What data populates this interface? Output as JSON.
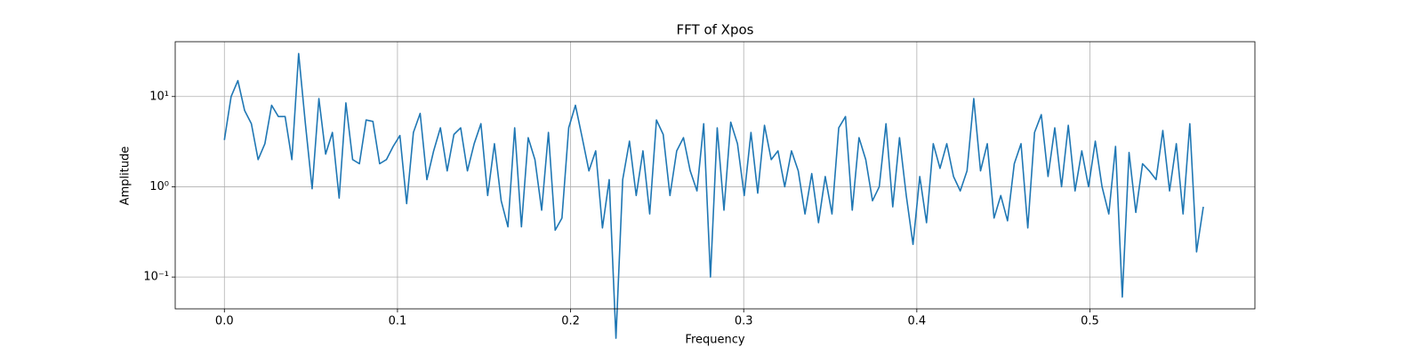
{
  "chart_data": {
    "type": "line",
    "title": "FFT of Xpos",
    "xlabel": "Frequency",
    "ylabel": "Amplitude",
    "x": [
      0,
      0.0039,
      0.0078,
      0.0117,
      0.0156,
      0.0195,
      0.0234,
      0.0273,
      0.0312,
      0.0351,
      0.039,
      0.0429,
      0.0468,
      0.0507,
      0.0546,
      0.0585,
      0.0624,
      0.0663,
      0.0702,
      0.0741,
      0.078,
      0.0819,
      0.0858,
      0.0897,
      0.0936,
      0.0975,
      0.1014,
      0.1053,
      0.1092,
      0.1131,
      0.117,
      0.1209,
      0.1248,
      0.1287,
      0.1326,
      0.1365,
      0.1404,
      0.1443,
      0.1482,
      0.1521,
      0.156,
      0.1599,
      0.1638,
      0.1677,
      0.1716,
      0.1755,
      0.1794,
      0.1833,
      0.1872,
      0.1911,
      0.195,
      0.1989,
      0.2028,
      0.2067,
      0.2106,
      0.2145,
      0.2184,
      0.2223,
      0.2262,
      0.2301,
      0.234,
      0.2379,
      0.2418,
      0.2457,
      0.2496,
      0.2535,
      0.2574,
      0.2613,
      0.2652,
      0.2691,
      0.273,
      0.2769,
      0.2808,
      0.2847,
      0.2886,
      0.2925,
      0.2964,
      0.3003,
      0.3042,
      0.3081,
      0.312,
      0.3159,
      0.3198,
      0.3237,
      0.3276,
      0.3315,
      0.3354,
      0.3393,
      0.3432,
      0.3471,
      0.351,
      0.3549,
      0.3588,
      0.3627,
      0.3666,
      0.3705,
      0.3744,
      0.3783,
      0.3822,
      0.3861,
      0.39,
      0.3939,
      0.3978,
      0.4017,
      0.4056,
      0.4095,
      0.4134,
      0.4173,
      0.4212,
      0.4251,
      0.429,
      0.4329,
      0.4368,
      0.4407,
      0.4446,
      0.4485,
      0.4524,
      0.4563,
      0.4602,
      0.4641,
      0.468,
      0.4719,
      0.4758,
      0.4797,
      0.4836,
      0.4875,
      0.4914,
      0.4953,
      0.4992,
      0.5031,
      0.507,
      0.5109,
      0.5148,
      0.5187,
      0.5226,
      0.5265,
      0.5304,
      0.5343,
      0.5382,
      0.5421,
      0.546,
      0.5499,
      0.5538,
      0.5577,
      0.5616,
      0.5655
    ],
    "values": [
      3.3,
      10,
      15,
      7,
      5,
      2,
      3,
      8,
      6,
      6,
      2,
      30,
      5,
      0.95,
      9.5,
      2.3,
      4,
      0.75,
      8.5,
      2,
      1.8,
      5.5,
      5.3,
      1.8,
      2,
      2.8,
      3.7,
      0.65,
      4,
      6.5,
      1.2,
      2.5,
      4.5,
      1.5,
      3.8,
      4.5,
      1.5,
      3,
      5,
      0.8,
      3,
      0.7,
      0.36,
      4.5,
      0.36,
      3.5,
      2,
      0.55,
      4,
      0.33,
      0.45,
      4.5,
      8,
      3.5,
      1.5,
      2.5,
      0.35,
      1.2,
      0.021,
      1.2,
      3.2,
      0.8,
      2.5,
      0.5,
      5.5,
      3.8,
      0.8,
      2.5,
      3.5,
      1.5,
      0.9,
      5,
      0.1,
      4.5,
      0.55,
      5.2,
      3,
      0.8,
      4,
      0.85,
      4.8,
      2,
      2.5,
      1,
      2.5,
      1.5,
      0.5,
      1.4,
      0.4,
      1.3,
      0.5,
      4.5,
      6,
      0.55,
      3.5,
      2,
      0.7,
      1,
      5,
      0.6,
      3.5,
      0.8,
      0.23,
      1.3,
      0.4,
      3,
      1.6,
      3,
      1.3,
      0.9,
      1.5,
      9.5,
      1.5,
      3,
      0.45,
      0.8,
      0.42,
      1.8,
      3,
      0.35,
      4,
      6.3,
      1.3,
      4.5,
      1,
      4.8,
      0.9,
      2.5,
      1,
      3.2,
      1,
      0.5,
      2.8,
      0.06,
      2.4,
      0.52,
      1.8,
      1.5,
      1.2,
      4.2,
      0.9,
      3,
      0.5,
      5,
      0.19,
      0.6
    ],
    "color": "#1f77b4",
    "xlim": [
      -0.0284,
      0.5953
    ],
    "xticks": [
      {
        "value": 0,
        "label": "0.0"
      },
      0.1,
      0.2,
      0.3,
      0.4,
      0.5
    ],
    "ylim": [
      0.0444,
      40.5
    ],
    "yscale": "log",
    "yticks": [
      {
        "value": 0.1,
        "label": "10⁻¹"
      },
      {
        "value": 1,
        "label": "10⁰"
      },
      {
        "value": 10,
        "label": "10¹"
      }
    ],
    "grid": true
  }
}
